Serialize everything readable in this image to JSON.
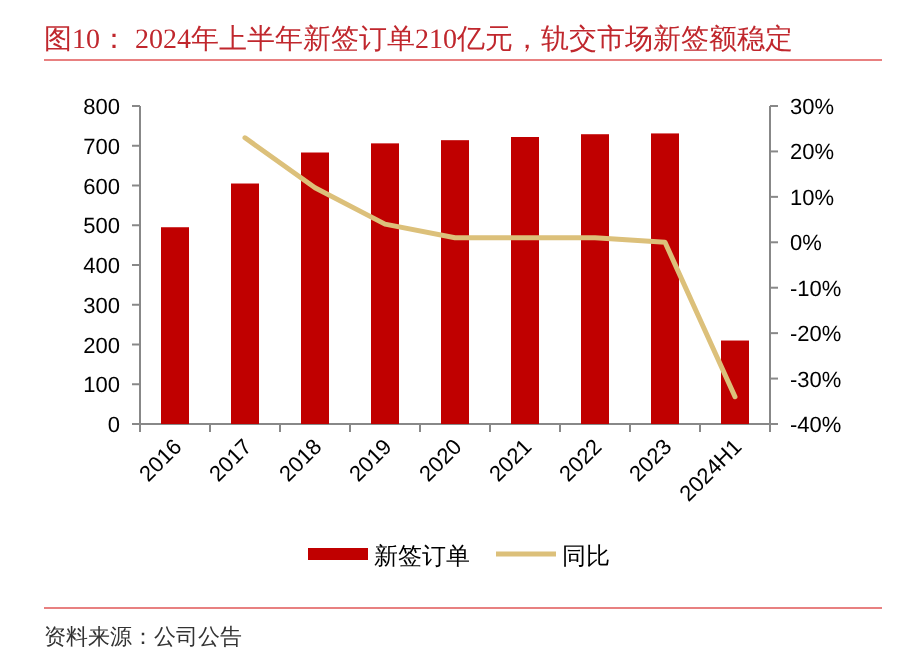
{
  "chart_data": {
    "type": "bar",
    "title": "图10：  2024年上半年新签订单210亿元，轨交市场新签额稳定",
    "categories": [
      "2016",
      "2017",
      "2018",
      "2019",
      "2020",
      "2021",
      "2022",
      "2023",
      "2024H1"
    ],
    "series": [
      {
        "name": "新签订单",
        "color": "#c00000",
        "values": [
          495,
          605,
          683,
          706,
          714,
          722,
          729,
          731,
          210
        ]
      },
      {
        "name": "同比",
        "type": "line",
        "axis": "y2",
        "color": "#dcc07a",
        "values": [
          null,
          23,
          12,
          4,
          1,
          1,
          1,
          0,
          -34
        ]
      }
    ],
    "ylim": [
      0,
      800
    ],
    "yticks": [
      0,
      100,
      200,
      300,
      400,
      500,
      600,
      700,
      800
    ],
    "y2lim": [
      -40,
      30
    ],
    "y2ticks": [
      {
        "value": -40,
        "label": "-40%"
      },
      {
        "value": -30,
        "label": "-30%"
      },
      {
        "value": -20,
        "label": "-20%"
      },
      {
        "value": -10,
        "label": "-10%"
      },
      {
        "value": 0,
        "label": "0%"
      },
      {
        "value": 10,
        "label": "10%"
      },
      {
        "value": 20,
        "label": "20%"
      },
      {
        "value": 30,
        "label": "30%"
      }
    ],
    "grid": false,
    "legend": "bottom",
    "marker": "none",
    "line_style": "solid",
    "annotations": [
      "资料来源：公司公告"
    ]
  }
}
